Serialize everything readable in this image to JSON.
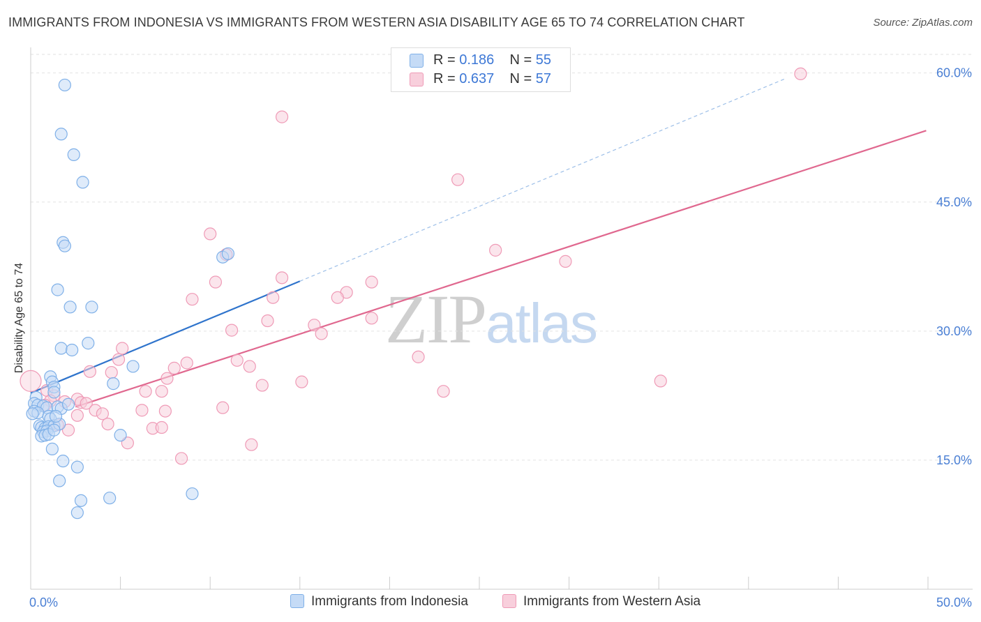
{
  "header": {
    "title": "IMMIGRANTS FROM INDONESIA VS IMMIGRANTS FROM WESTERN ASIA DISABILITY AGE 65 TO 74 CORRELATION CHART",
    "source": "Source: ZipAtlas.com"
  },
  "watermark": {
    "zip": "ZIP",
    "atlas": "atlas"
  },
  "legend": {
    "r_label": "R =",
    "n_label": "N =",
    "series": [
      {
        "r": "0.186",
        "n": "55"
      },
      {
        "r": "0.637",
        "n": "57"
      }
    ]
  },
  "chart_data": {
    "type": "scatter",
    "title": "IMMIGRANTS FROM INDONESIA VS IMMIGRANTS FROM WESTERN ASIA DISABILITY AGE 65 TO 74 CORRELATION CHART",
    "xlabel": "",
    "ylabel": "Disability Age 65 to 74",
    "xlim": [
      0,
      50
    ],
    "ylim": [
      0,
      62
    ],
    "x_tick_labels": [
      "0.0%",
      "50.0%"
    ],
    "y_ticks": [
      {
        "value": 15,
        "label": "15.0%"
      },
      {
        "value": 30,
        "label": "30.0%"
      },
      {
        "value": 45,
        "label": "45.0%"
      },
      {
        "value": 60,
        "label": "60.0%"
      }
    ],
    "grid": true,
    "series": [
      {
        "name": "Immigrants from Indonesia",
        "color": "#7fb0e8",
        "fill": "#c5dbf6",
        "trend_color": "#2f74cc",
        "trend": {
          "x0": 0,
          "y0": 22.8,
          "x1": 15,
          "y1": 35.8,
          "dash_to_x": 42,
          "dash_to_y": 59.3
        },
        "points": [
          [
            1.9,
            58.6
          ],
          [
            1.7,
            52.9
          ],
          [
            2.4,
            50.5
          ],
          [
            2.9,
            47.3
          ],
          [
            1.8,
            40.3
          ],
          [
            1.9,
            39.9
          ],
          [
            1.5,
            34.8
          ],
          [
            2.2,
            32.8
          ],
          [
            3.4,
            32.8
          ],
          [
            3.2,
            28.6
          ],
          [
            1.7,
            28.0
          ],
          [
            2.3,
            27.8
          ],
          [
            5.7,
            25.9
          ],
          [
            4.6,
            23.9
          ],
          [
            1.1,
            24.7
          ],
          [
            1.2,
            24.1
          ],
          [
            1.3,
            23.5
          ],
          [
            1.3,
            22.9
          ],
          [
            0.3,
            22.3
          ],
          [
            0.2,
            21.6
          ],
          [
            0.4,
            21.4
          ],
          [
            0.7,
            21.3
          ],
          [
            0.9,
            21.1
          ],
          [
            1.5,
            21.2
          ],
          [
            1.7,
            21.0
          ],
          [
            2.1,
            21.5
          ],
          [
            0.2,
            20.7
          ],
          [
            0.4,
            20.5
          ],
          [
            1.0,
            20.1
          ],
          [
            1.1,
            19.8
          ],
          [
            0.5,
            19.0
          ],
          [
            0.6,
            18.8
          ],
          [
            0.8,
            18.7
          ],
          [
            1.0,
            18.9
          ],
          [
            1.3,
            19.0
          ],
          [
            1.6,
            19.2
          ],
          [
            0.7,
            18.3
          ],
          [
            0.9,
            18.4
          ],
          [
            0.6,
            17.8
          ],
          [
            0.8,
            17.9
          ],
          [
            1.0,
            18.0
          ],
          [
            1.3,
            18.5
          ],
          [
            5.0,
            17.9
          ],
          [
            1.2,
            16.3
          ],
          [
            1.8,
            14.9
          ],
          [
            2.6,
            14.2
          ],
          [
            1.6,
            12.6
          ],
          [
            2.8,
            10.3
          ],
          [
            4.4,
            10.6
          ],
          [
            9.0,
            11.1
          ],
          [
            2.6,
            8.9
          ],
          [
            0.1,
            20.4
          ],
          [
            10.7,
            38.6
          ],
          [
            11.0,
            39.0
          ],
          [
            1.4,
            20.1
          ]
        ]
      },
      {
        "name": "Immigrants from Western Asia",
        "color": "#ef9ab6",
        "fill": "#f8cfdc",
        "trend_color": "#e0688f",
        "trend": {
          "x0": 2.5,
          "y0": 21.2,
          "x1": 49.9,
          "y1": 53.3
        },
        "points": [
          [
            42.9,
            59.9
          ],
          [
            14.0,
            54.9
          ],
          [
            23.8,
            47.6
          ],
          [
            10.0,
            41.3
          ],
          [
            10.9,
            38.9
          ],
          [
            25.9,
            39.4
          ],
          [
            29.8,
            38.1
          ],
          [
            14.0,
            36.2
          ],
          [
            10.3,
            35.7
          ],
          [
            19.0,
            35.7
          ],
          [
            9.0,
            33.7
          ],
          [
            13.5,
            33.9
          ],
          [
            17.6,
            34.5
          ],
          [
            17.1,
            33.9
          ],
          [
            19.0,
            31.5
          ],
          [
            13.2,
            31.2
          ],
          [
            15.8,
            30.7
          ],
          [
            11.2,
            30.1
          ],
          [
            16.2,
            29.7
          ],
          [
            21.6,
            27.0
          ],
          [
            5.1,
            28.0
          ],
          [
            4.9,
            26.7
          ],
          [
            11.5,
            26.6
          ],
          [
            8.7,
            26.3
          ],
          [
            12.2,
            25.9
          ],
          [
            8.0,
            25.7
          ],
          [
            4.5,
            25.2
          ],
          [
            3.3,
            25.3
          ],
          [
            7.6,
            24.5
          ],
          [
            15.1,
            24.1
          ],
          [
            12.9,
            23.7
          ],
          [
            35.1,
            24.2
          ],
          [
            6.4,
            23.0
          ],
          [
            7.3,
            23.0
          ],
          [
            23.0,
            23.0
          ],
          [
            0.9,
            23.1
          ],
          [
            1.3,
            22.5
          ],
          [
            2.6,
            22.1
          ],
          [
            1.1,
            21.9
          ],
          [
            1.9,
            21.8
          ],
          [
            2.8,
            21.7
          ],
          [
            3.1,
            21.6
          ],
          [
            10.7,
            21.1
          ],
          [
            0.8,
            21.4
          ],
          [
            3.6,
            20.8
          ],
          [
            6.2,
            20.8
          ],
          [
            7.5,
            20.7
          ],
          [
            4.0,
            20.4
          ],
          [
            2.6,
            20.2
          ],
          [
            4.3,
            19.2
          ],
          [
            1.5,
            19.1
          ],
          [
            2.1,
            18.5
          ],
          [
            6.8,
            18.7
          ],
          [
            7.3,
            18.8
          ],
          [
            5.4,
            17.0
          ],
          [
            12.3,
            16.8
          ],
          [
            8.4,
            15.2
          ]
        ]
      }
    ]
  }
}
